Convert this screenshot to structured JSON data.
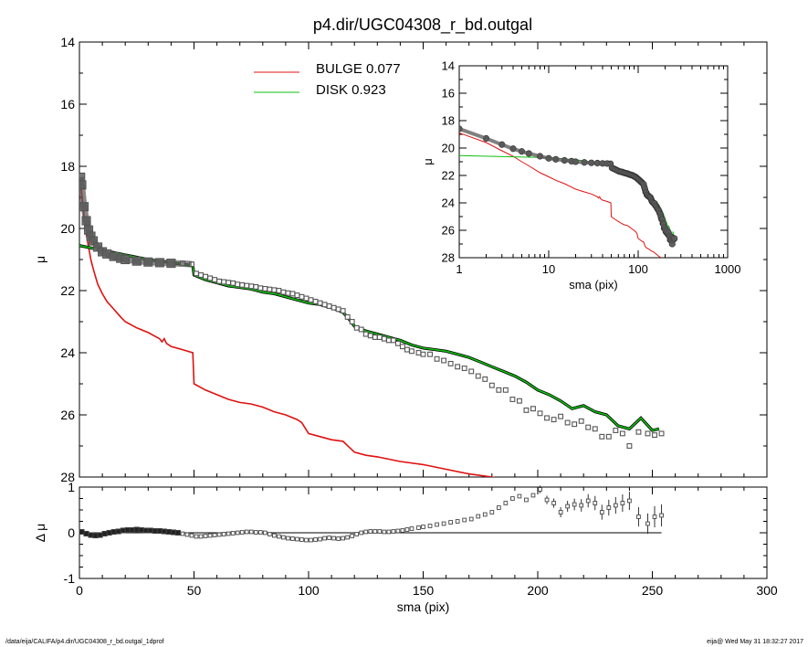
{
  "title": "p4.dir/UGC04308_r_bd.outgal",
  "footer": {
    "path": "/data/eija/CALIFA/p4.dir/UGC04308_r_bd.outgal_1dprof",
    "stamp": "eija@  Wed May 31 18:32:27 2017"
  },
  "colors": {
    "bulge": "#e01010",
    "disk": "#10c010",
    "data": "#555555",
    "axes": "#000000"
  },
  "legend": [
    {
      "label": "BULGE  0.077",
      "color": "#e01010"
    },
    {
      "label": "DISK  0.923",
      "color": "#10c010"
    }
  ],
  "chart_data": [
    {
      "type": "line",
      "panel": "main profile",
      "xlabel": "sma (pix)",
      "ylabel": "μ",
      "xlim": [
        0,
        300
      ],
      "ylim": [
        28,
        14
      ],
      "x_ticks": [
        0,
        50,
        100,
        150,
        200,
        250,
        300
      ],
      "y_ticks": [
        14,
        16,
        18,
        20,
        22,
        24,
        26,
        28
      ],
      "series": [
        {
          "name": "BULGE",
          "color": "#e01010",
          "x": [
            0.5,
            1,
            2,
            3,
            4,
            5,
            6,
            8,
            10,
            12,
            15,
            18,
            20,
            25,
            30,
            35,
            36,
            37,
            38,
            40,
            45,
            49.5,
            50,
            55,
            60,
            65,
            70,
            75,
            80,
            85,
            90,
            95,
            97,
            100,
            105,
            110,
            115,
            120,
            125,
            130,
            140,
            150,
            160,
            170,
            180,
            183
          ],
          "y": [
            18.4,
            18.9,
            19.6,
            20.2,
            20.6,
            21.0,
            21.3,
            21.8,
            22.1,
            22.35,
            22.6,
            22.85,
            23.0,
            23.2,
            23.35,
            23.55,
            23.65,
            23.55,
            23.7,
            23.8,
            23.9,
            24.0,
            25.0,
            25.2,
            25.35,
            25.5,
            25.6,
            25.65,
            25.75,
            25.9,
            26.0,
            26.15,
            26.25,
            26.6,
            26.7,
            26.8,
            26.85,
            27.2,
            27.3,
            27.35,
            27.5,
            27.6,
            27.75,
            27.9,
            28.0,
            28.05
          ]
        },
        {
          "name": "DISK",
          "color": "#10c010",
          "x": [
            0,
            10,
            20,
            30,
            40,
            49.5,
            50,
            55,
            60,
            65,
            70,
            75,
            80,
            85,
            90,
            95,
            100,
            105,
            110,
            115,
            118,
            120,
            125,
            130,
            135,
            140,
            145,
            150,
            155,
            160,
            165,
            170,
            175,
            180,
            185,
            190,
            195,
            200,
            205,
            210,
            215,
            220,
            225,
            230,
            235,
            240,
            245,
            250,
            253
          ],
          "y": [
            20.55,
            20.7,
            20.85,
            21.0,
            21.1,
            21.2,
            21.5,
            21.65,
            21.75,
            21.85,
            21.9,
            21.95,
            22.05,
            22.1,
            22.2,
            22.3,
            22.4,
            22.45,
            22.55,
            22.7,
            22.95,
            23.15,
            23.3,
            23.4,
            23.5,
            23.6,
            23.75,
            23.85,
            23.9,
            23.95,
            24.05,
            24.15,
            24.3,
            24.45,
            24.6,
            24.75,
            24.95,
            25.2,
            25.35,
            25.55,
            25.8,
            25.7,
            25.9,
            26.0,
            26.35,
            26.45,
            26.1,
            26.5,
            26.45
          ]
        },
        {
          "name": "",
          "color": "#555555",
          "x": [
            0.5,
            1,
            2,
            3,
            4,
            5,
            6,
            8,
            10,
            12,
            15,
            18,
            20,
            25,
            30,
            35,
            40,
            45,
            49,
            51,
            53,
            55,
            57,
            59,
            61,
            63,
            65,
            67,
            69,
            71,
            73,
            75,
            77,
            79,
            81,
            83,
            85,
            87,
            89,
            91,
            93,
            95,
            97,
            99,
            101,
            103,
            105,
            107,
            109,
            111,
            113,
            115,
            117,
            119,
            121,
            123,
            125,
            127,
            129,
            131,
            133,
            135,
            137,
            139,
            141,
            143,
            145,
            148,
            150,
            153,
            156,
            159,
            162,
            165,
            168,
            171,
            174,
            177,
            180,
            183,
            186,
            189,
            192,
            195,
            198,
            201,
            204,
            207,
            210,
            213,
            216,
            219,
            222,
            225,
            228,
            231,
            234,
            237,
            240,
            244,
            248,
            251,
            254
          ],
          "y": [
            18.35,
            18.6,
            19.3,
            19.75,
            20.05,
            20.25,
            20.4,
            20.6,
            20.75,
            20.82,
            20.9,
            20.96,
            21.0,
            21.05,
            21.08,
            21.1,
            21.12,
            21.13,
            21.15,
            21.45,
            21.5,
            21.55,
            21.6,
            21.65,
            21.7,
            21.72,
            21.74,
            21.76,
            21.8,
            21.82,
            21.84,
            21.86,
            21.88,
            21.92,
            21.94,
            21.96,
            21.98,
            22.0,
            22.05,
            22.08,
            22.1,
            22.15,
            22.2,
            22.25,
            22.3,
            22.35,
            22.4,
            22.45,
            22.5,
            22.55,
            22.6,
            22.65,
            22.85,
            23.0,
            23.2,
            23.25,
            23.4,
            23.45,
            23.5,
            23.5,
            23.55,
            23.6,
            23.6,
            23.7,
            23.8,
            23.9,
            23.95,
            24.0,
            24.05,
            24.05,
            24.2,
            24.25,
            24.35,
            24.45,
            24.5,
            24.6,
            24.75,
            24.85,
            25.05,
            25.2,
            25.2,
            25.5,
            25.55,
            25.85,
            25.8,
            25.95,
            26.1,
            26.15,
            26.05,
            26.25,
            26.3,
            26.2,
            26.4,
            26.45,
            26.7,
            26.7,
            26.5,
            26.6,
            27.0,
            26.55,
            26.6,
            26.65,
            26.6
          ]
        }
      ]
    },
    {
      "type": "scatter",
      "panel": "residuals",
      "xlabel": "sma (pix)",
      "ylabel": "Δ μ",
      "xlim": [
        0,
        300
      ],
      "ylim": [
        -1,
        1
      ],
      "x_ticks": [
        0,
        50,
        100,
        150,
        200,
        250,
        300
      ],
      "y_ticks": [
        -1,
        0,
        1
      ],
      "series": [
        {
          "name": "",
          "color": "#555555",
          "x": [
            1,
            3,
            5,
            7,
            9,
            11,
            13,
            15,
            17,
            19,
            21,
            23,
            25,
            27,
            29,
            31,
            33,
            35,
            37,
            39,
            41,
            43,
            45,
            47,
            49,
            51,
            53,
            55,
            57,
            59,
            61,
            63,
            65,
            67,
            69,
            71,
            73,
            75,
            77,
            79,
            81,
            83,
            85,
            87,
            89,
            91,
            93,
            95,
            97,
            99,
            101,
            103,
            105,
            107,
            109,
            111,
            113,
            115,
            117,
            119,
            121,
            123,
            125,
            127,
            129,
            131,
            133,
            135,
            137,
            139,
            141,
            143,
            145,
            148,
            150,
            153,
            156,
            159,
            162,
            165,
            168,
            171,
            174,
            177,
            180,
            183,
            186,
            189,
            192,
            195,
            198,
            201,
            204,
            207,
            210,
            213,
            216,
            219,
            222,
            225,
            228,
            231,
            234,
            237,
            240,
            244,
            248,
            251,
            254
          ],
          "y": [
            0.02,
            -0.02,
            -0.05,
            -0.06,
            -0.05,
            -0.02,
            0.0,
            0.02,
            0.03,
            0.05,
            0.06,
            0.06,
            0.07,
            0.06,
            0.05,
            0.05,
            0.04,
            0.04,
            0.03,
            0.02,
            0.01,
            0.0,
            -0.02,
            -0.04,
            -0.06,
            -0.08,
            -0.08,
            -0.07,
            -0.06,
            -0.05,
            -0.04,
            -0.03,
            -0.02,
            -0.01,
            0.0,
            0.01,
            0.02,
            0.02,
            0.01,
            0.01,
            0.0,
            -0.03,
            -0.06,
            -0.08,
            -0.1,
            -0.12,
            -0.13,
            -0.14,
            -0.15,
            -0.16,
            -0.16,
            -0.15,
            -0.14,
            -0.12,
            -0.11,
            -0.12,
            -0.13,
            -0.12,
            -0.1,
            -0.07,
            -0.03,
            0.0,
            0.02,
            0.03,
            0.03,
            0.03,
            0.02,
            0.02,
            0.03,
            0.04,
            0.05,
            0.07,
            0.09,
            0.11,
            0.13,
            0.15,
            0.18,
            0.2,
            0.23,
            0.25,
            0.28,
            0.3,
            0.36,
            0.4,
            0.45,
            0.55,
            0.65,
            0.75,
            0.8,
            0.72,
            0.82,
            0.95,
            0.72,
            0.65,
            0.45,
            0.58,
            0.62,
            0.6,
            0.7,
            0.65,
            0.45,
            0.55,
            0.6,
            0.65,
            0.7,
            0.35,
            0.2,
            0.35,
            0.38
          ]
        }
      ]
    },
    {
      "type": "line",
      "panel": "inset log profile",
      "xlabel": "sma (pix)",
      "ylabel": "μ",
      "x_scale": "log",
      "xlim": [
        1,
        1000
      ],
      "ylim": [
        28,
        14
      ],
      "x_ticks": [
        1,
        10,
        100,
        1000
      ],
      "y_ticks": [
        14,
        16,
        18,
        20,
        22,
        24,
        26,
        28
      ]
    }
  ]
}
